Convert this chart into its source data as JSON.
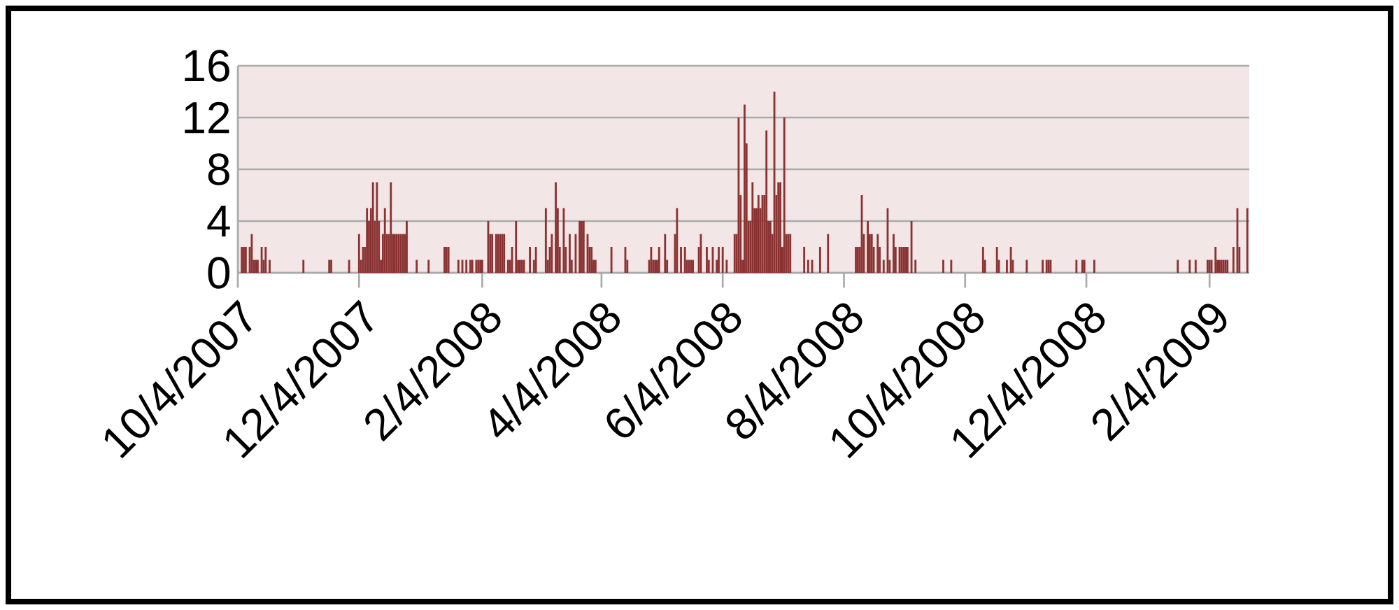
{
  "chart_data": {
    "type": "bar",
    "color": "#8b3333",
    "grid": "y",
    "xlim": [
      "2007-10-04",
      "2009-02-24"
    ],
    "xticks": [
      {
        "value": "2007-10-04",
        "label": "10/4/2007"
      },
      {
        "value": "2007-12-04",
        "label": "12/4/2007"
      },
      {
        "value": "2008-02-04",
        "label": "2/4/2008"
      },
      {
        "value": "2008-04-04",
        "label": "4/4/2008"
      },
      {
        "value": "2008-06-04",
        "label": "6/4/2008"
      },
      {
        "value": "2008-08-04",
        "label": "8/4/2008"
      },
      {
        "value": "2008-10-04",
        "label": "10/4/2008"
      },
      {
        "value": "2008-12-04",
        "label": "12/4/2008"
      },
      {
        "value": "2009-02-04",
        "label": "2/4/2009"
      }
    ],
    "ylim": [
      0,
      16
    ],
    "yticks": [
      0,
      4,
      8,
      12,
      16
    ],
    "x": [
      "2007-10-06",
      "2007-10-07",
      "2007-10-08",
      "2007-10-10",
      "2007-10-11",
      "2007-10-12",
      "2007-10-13",
      "2007-10-14",
      "2007-10-16",
      "2007-10-17",
      "2007-10-18",
      "2007-10-20",
      "2007-11-06",
      "2007-11-19",
      "2007-11-20",
      "2007-11-29",
      "2007-12-04",
      "2007-12-05",
      "2007-12-06",
      "2007-12-07",
      "2007-12-08",
      "2007-12-09",
      "2007-12-10",
      "2007-12-11",
      "2007-12-12",
      "2007-12-13",
      "2007-12-14",
      "2007-12-15",
      "2007-12-16",
      "2007-12-17",
      "2007-12-18",
      "2007-12-19",
      "2007-12-20",
      "2007-12-21",
      "2007-12-22",
      "2007-12-23",
      "2007-12-24",
      "2007-12-25",
      "2007-12-26",
      "2007-12-27",
      "2007-12-28",
      "2008-01-02",
      "2008-01-08",
      "2008-01-16",
      "2008-01-17",
      "2008-01-18",
      "2008-01-23",
      "2008-01-25",
      "2008-01-27",
      "2008-01-29",
      "2008-01-30",
      "2008-02-01",
      "2008-02-02",
      "2008-02-03",
      "2008-02-04",
      "2008-02-07",
      "2008-02-08",
      "2008-02-09",
      "2008-02-11",
      "2008-02-12",
      "2008-02-13",
      "2008-02-14",
      "2008-02-15",
      "2008-02-17",
      "2008-02-18",
      "2008-02-19",
      "2008-02-21",
      "2008-02-22",
      "2008-02-23",
      "2008-02-24",
      "2008-02-25",
      "2008-02-28",
      "2008-03-01",
      "2008-03-02",
      "2008-03-07",
      "2008-03-08",
      "2008-03-09",
      "2008-03-10",
      "2008-03-12",
      "2008-03-13",
      "2008-03-14",
      "2008-03-16",
      "2008-03-17",
      "2008-03-19",
      "2008-03-20",
      "2008-03-22",
      "2008-03-24",
      "2008-03-25",
      "2008-03-26",
      "2008-03-28",
      "2008-03-29",
      "2008-03-30",
      "2008-03-31",
      "2008-04-01",
      "2008-04-09",
      "2008-04-16",
      "2008-04-17",
      "2008-04-28",
      "2008-04-29",
      "2008-04-30",
      "2008-05-01",
      "2008-05-02",
      "2008-05-03",
      "2008-05-06",
      "2008-05-07",
      "2008-05-11",
      "2008-05-12",
      "2008-05-14",
      "2008-05-16",
      "2008-05-17",
      "2008-05-18",
      "2008-05-19",
      "2008-05-20",
      "2008-05-23",
      "2008-05-24",
      "2008-05-27",
      "2008-05-28",
      "2008-05-30",
      "2008-06-01",
      "2008-06-02",
      "2008-06-04",
      "2008-06-06",
      "2008-06-10",
      "2008-06-11",
      "2008-06-12",
      "2008-06-13",
      "2008-06-14",
      "2008-06-15",
      "2008-06-16",
      "2008-06-17",
      "2008-06-18",
      "2008-06-19",
      "2008-06-20",
      "2008-06-21",
      "2008-06-22",
      "2008-06-23",
      "2008-06-24",
      "2008-06-25",
      "2008-06-26",
      "2008-06-27",
      "2008-06-28",
      "2008-06-29",
      "2008-06-30",
      "2008-07-01",
      "2008-07-02",
      "2008-07-03",
      "2008-07-04",
      "2008-07-05",
      "2008-07-06",
      "2008-07-07",
      "2008-07-08",
      "2008-07-15",
      "2008-07-17",
      "2008-07-19",
      "2008-07-23",
      "2008-07-27",
      "2008-08-10",
      "2008-08-11",
      "2008-08-12",
      "2008-08-13",
      "2008-08-14",
      "2008-08-16",
      "2008-08-17",
      "2008-08-18",
      "2008-08-19",
      "2008-08-21",
      "2008-08-22",
      "2008-08-24",
      "2008-08-26",
      "2008-08-27",
      "2008-08-29",
      "2008-08-30",
      "2008-09-01",
      "2008-09-02",
      "2008-09-03",
      "2008-09-04",
      "2008-09-05",
      "2008-09-07",
      "2008-09-09",
      "2008-09-23",
      "2008-09-27",
      "2008-10-13",
      "2008-10-14",
      "2008-10-20",
      "2008-10-21",
      "2008-10-25",
      "2008-10-27",
      "2008-10-28",
      "2008-11-04",
      "2008-11-12",
      "2008-11-14",
      "2008-11-15",
      "2008-11-16",
      "2008-11-29",
      "2008-12-02",
      "2008-12-03",
      "2008-12-08",
      "2009-01-19",
      "2009-01-25",
      "2009-01-28",
      "2009-02-03",
      "2009-02-04",
      "2009-02-05",
      "2009-02-07",
      "2009-02-08",
      "2009-02-09",
      "2009-02-10",
      "2009-02-11",
      "2009-02-12",
      "2009-02-13",
      "2009-02-16",
      "2009-02-18",
      "2009-02-19",
      "2009-02-23"
    ],
    "values": [
      2,
      2,
      2,
      2,
      3,
      1,
      1,
      1,
      2,
      1,
      2,
      1,
      1,
      1,
      1,
      1,
      3,
      1,
      2,
      2,
      5,
      4,
      5,
      7,
      4,
      7,
      4,
      1,
      3,
      5,
      3,
      3,
      7,
      3,
      3,
      3,
      3,
      3,
      3,
      3,
      4,
      1,
      1,
      2,
      2,
      2,
      1,
      1,
      1,
      1,
      1,
      1,
      1,
      1,
      1,
      4,
      3,
      3,
      3,
      3,
      3,
      3,
      3,
      1,
      1,
      2,
      4,
      1,
      1,
      1,
      1,
      2,
      1,
      2,
      5,
      1,
      2,
      3,
      7,
      5,
      2,
      5,
      2,
      3,
      1,
      3,
      4,
      4,
      4,
      3,
      2,
      2,
      1,
      1,
      2,
      2,
      1,
      1,
      2,
      1,
      1,
      1,
      2,
      3,
      1,
      3,
      5,
      2,
      2,
      1,
      1,
      1,
      1,
      2,
      3,
      2,
      1,
      2,
      1,
      2,
      2,
      1,
      3,
      3,
      12,
      6,
      1,
      13,
      10,
      4,
      4,
      7,
      5,
      5,
      6,
      5,
      6,
      6,
      11,
      4,
      4,
      3,
      14,
      6,
      7,
      7,
      2,
      12,
      3,
      3,
      3,
      2,
      1,
      1,
      2,
      3,
      2,
      2,
      2,
      6,
      3,
      4,
      3,
      3,
      2,
      3,
      2,
      1,
      5,
      1,
      3,
      2,
      2,
      2,
      2,
      2,
      2,
      4,
      1,
      1,
      1,
      2,
      1,
      2,
      1,
      1,
      2,
      1,
      1,
      1,
      1,
      1,
      1,
      1,
      1,
      1,
      1,
      1,
      1,
      1,
      1,
      1,
      1,
      2,
      1,
      1,
      1,
      1,
      1,
      1,
      2,
      5,
      2,
      5
    ]
  }
}
